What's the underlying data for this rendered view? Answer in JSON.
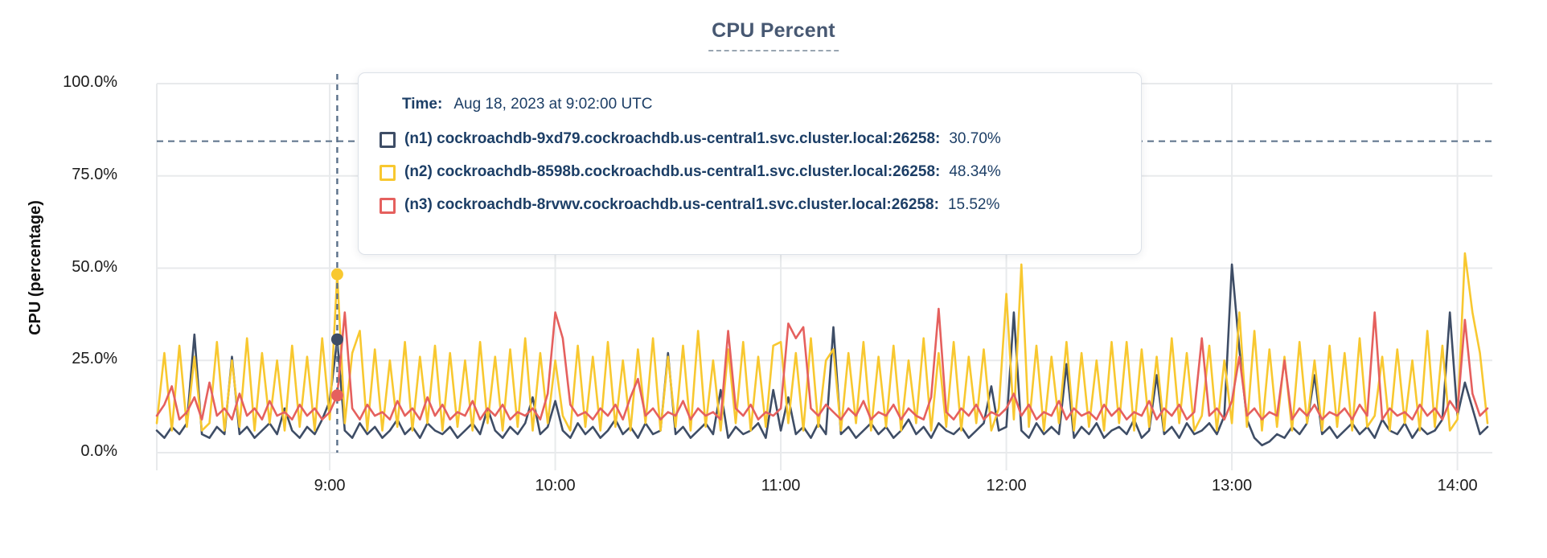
{
  "header": {
    "title": "CPU Percent"
  },
  "tooltip": {
    "time_label": "Time:",
    "time_value": "Aug 18, 2023 at 9:02:00 UTC",
    "rows": [
      {
        "label": "(n1) cockroachdb-9xd79.cockroachdb.us-central1.svc.cluster.local:26258:",
        "value": "30.70%",
        "color": "#3e4d66"
      },
      {
        "label": "(n2) cockroachdb-8598b.cockroachdb.us-central1.svc.cluster.local:26258:",
        "value": "48.34%",
        "color": "#f8c830"
      },
      {
        "label": "(n3) cockroachdb-8rvwv.cockroachdb.us-central1.svc.cluster.local:26258:",
        "value": "15.52%",
        "color": "#e5605e"
      }
    ]
  },
  "hover": {
    "time_minutes": 542,
    "time_text": "9:02",
    "points": [
      30.7,
      48.34,
      15.52
    ]
  },
  "chart_data": {
    "type": "line",
    "title": "CPU Percent",
    "xlabel": "",
    "ylabel": "CPU (percentage)",
    "ylim": [
      0,
      100
    ],
    "grid": true,
    "legend_position": "tooltip-overlay",
    "threshold_line_percent": 84.4,
    "sample_step_minutes": 2,
    "time_domain": {
      "start_minutes": 494,
      "end_minutes": 848,
      "start_label": "8:14",
      "end_label": "14:08"
    },
    "y_ticks": [
      {
        "label": "100.0%",
        "value": 100
      },
      {
        "label": "75.0%",
        "value": 75
      },
      {
        "label": "50.0%",
        "value": 50
      },
      {
        "label": "25.0%",
        "value": 25
      },
      {
        "label": "0.0%",
        "value": 0
      }
    ],
    "x_ticks": [
      {
        "label": "9:00",
        "minutes": 540
      },
      {
        "label": "10:00",
        "minutes": 600
      },
      {
        "label": "11:00",
        "minutes": 660
      },
      {
        "label": "12:00",
        "minutes": 720
      },
      {
        "label": "13:00",
        "minutes": 780
      },
      {
        "label": "14:00",
        "minutes": 840
      }
    ],
    "series": [
      {
        "name": "(n1) cockroachdb-9xd79.cockroachdb.us-central1.svc.cluster.local:26258",
        "color": "#3e4d66",
        "values": [
          6,
          4,
          7,
          5,
          8,
          32,
          5,
          4,
          7,
          5,
          26,
          5,
          7,
          4,
          6,
          8,
          5,
          12,
          6,
          4,
          7,
          5,
          9,
          14,
          30.7,
          6,
          4,
          8,
          5,
          7,
          4,
          6,
          9,
          5,
          7,
          4,
          8,
          6,
          5,
          7,
          4,
          6,
          8,
          5,
          12,
          6,
          4,
          7,
          5,
          8,
          15,
          5,
          7,
          14,
          6,
          4,
          8,
          5,
          7,
          4,
          6,
          9,
          5,
          7,
          4,
          8,
          5,
          6,
          27,
          5,
          7,
          4,
          6,
          8,
          5,
          17,
          4,
          7,
          5,
          6,
          8,
          4,
          17,
          6,
          15,
          5,
          7,
          4,
          8,
          5,
          34,
          5,
          7,
          4,
          6,
          8,
          5,
          7,
          4,
          6,
          9,
          5,
          7,
          4,
          8,
          6,
          5,
          7,
          4,
          6,
          8,
          18,
          6,
          7,
          38,
          6,
          4,
          8,
          5,
          7,
          5,
          24,
          4,
          7,
          5,
          8,
          4,
          6,
          7,
          5,
          9,
          4,
          6,
          21,
          5,
          7,
          4,
          8,
          5,
          6,
          8,
          5,
          10,
          51,
          28,
          9,
          4,
          2,
          3,
          5,
          4,
          7,
          5,
          8,
          21,
          5,
          7,
          4,
          6,
          8,
          5,
          7,
          4,
          9,
          6,
          5,
          8,
          4,
          7,
          5,
          6,
          9,
          38,
          10,
          19,
          12,
          5,
          7
        ]
      },
      {
        "name": "(n2) cockroachdb-8598b.cockroachdb.us-central1.svc.cluster.local:26258",
        "color": "#f8c830",
        "values": [
          8,
          27,
          6,
          29,
          7,
          26,
          6,
          8,
          30,
          6,
          25,
          7,
          31,
          6,
          27,
          8,
          25,
          6,
          29,
          7,
          26,
          6,
          31,
          9,
          48.34,
          8,
          27,
          33,
          6,
          28,
          6,
          25,
          7,
          30,
          6,
          26,
          8,
          29,
          6,
          27,
          7,
          25,
          6,
          30,
          8,
          26,
          6,
          28,
          7,
          31,
          6,
          27,
          8,
          25,
          10,
          6,
          29,
          7,
          26,
          6,
          30,
          7,
          25,
          6,
          28,
          8,
          31,
          6,
          26,
          7,
          29,
          6,
          33,
          7,
          25,
          6,
          28,
          8,
          30,
          6,
          26,
          7,
          29,
          30,
          8,
          27,
          6,
          31,
          7,
          25,
          28,
          6,
          27,
          8,
          30,
          6,
          26,
          7,
          29,
          6,
          25,
          8,
          31,
          6,
          27,
          7,
          30,
          6,
          26,
          8,
          28,
          6,
          12,
          43,
          9,
          51,
          7,
          29,
          6,
          26,
          8,
          30,
          6,
          27,
          7,
          25,
          6,
          30,
          8,
          30,
          6,
          28,
          7,
          26,
          6,
          31,
          8,
          27,
          6,
          10,
          29,
          6,
          25,
          8,
          38,
          7,
          33,
          6,
          28,
          7,
          26,
          6,
          30,
          8,
          25,
          6,
          29,
          7,
          27,
          6,
          31,
          7,
          10,
          26,
          6,
          28,
          8,
          25,
          6,
          33,
          7,
          29,
          6,
          9,
          54,
          38,
          27,
          8
        ]
      },
      {
        "name": "(n3) cockroachdb-8rvwv.cockroachdb.us-central1.svc.cluster.local:26258",
        "color": "#e5605e",
        "values": [
          10,
          13,
          18,
          9,
          11,
          15,
          9,
          19,
          10,
          12,
          9,
          16,
          10,
          12,
          9,
          14,
          10,
          11,
          9,
          13,
          10,
          12,
          9,
          11,
          15.52,
          38,
          12,
          9,
          13,
          10,
          11,
          9,
          14,
          10,
          12,
          9,
          15,
          10,
          13,
          9,
          11,
          10,
          14,
          9,
          12,
          10,
          13,
          9,
          11,
          10,
          12,
          9,
          16,
          38,
          31,
          13,
          10,
          11,
          9,
          12,
          10,
          13,
          9,
          15,
          20,
          10,
          12,
          9,
          11,
          10,
          14,
          9,
          12,
          10,
          11,
          9,
          33,
          12,
          10,
          13,
          9,
          11,
          10,
          12,
          35,
          31,
          34,
          12,
          10,
          13,
          11,
          9,
          12,
          10,
          14,
          9,
          11,
          10,
          13,
          9,
          12,
          10,
          9,
          15,
          39,
          11,
          9,
          12,
          10,
          13,
          9,
          11,
          10,
          12,
          16,
          10,
          13,
          9,
          11,
          10,
          14,
          9,
          12,
          10,
          11,
          9,
          13,
          10,
          12,
          9,
          11,
          10,
          14,
          9,
          12,
          10,
          13,
          9,
          11,
          31,
          10,
          12,
          9,
          14,
          26,
          10,
          12,
          9,
          11,
          10,
          25,
          9,
          12,
          10,
          13,
          9,
          11,
          10,
          12,
          9,
          13,
          10,
          38,
          9,
          12,
          10,
          11,
          9,
          13,
          10,
          12,
          9,
          14,
          11,
          36,
          16,
          10,
          12
        ]
      }
    ],
    "guide_color": "#5a7089",
    "grid_color": "#e8eaec"
  }
}
